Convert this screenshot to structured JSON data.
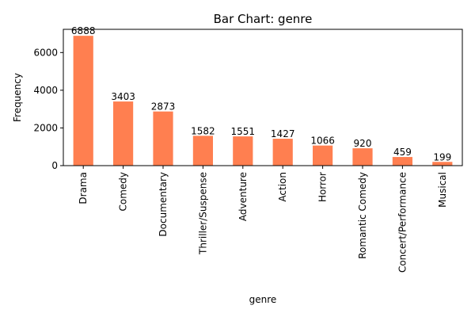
{
  "chart_data": {
    "type": "bar",
    "title": "Bar Chart: genre",
    "xlabel": "genre",
    "ylabel": "Frequency",
    "categories": [
      "Drama",
      "Comedy",
      "Documentary",
      "Thriller/Suspense",
      "Adventure",
      "Action",
      "Horror",
      "Romantic Comedy",
      "Concert/Performance",
      "Musical"
    ],
    "values": [
      6888,
      3403,
      2873,
      1582,
      1551,
      1427,
      1066,
      920,
      459,
      199
    ],
    "data_labels": [
      "6888",
      "3403",
      "2873",
      "1582",
      "1551",
      "1427",
      "1066",
      "920",
      "459",
      "199"
    ],
    "ylim": [
      0,
      7232
    ],
    "yticks": [
      0,
      2000,
      4000,
      6000
    ],
    "ytick_labels": [
      "0",
      "2000",
      "4000",
      "6000"
    ],
    "grid": false,
    "legend": "none",
    "bar_color": "#ff7f50"
  }
}
